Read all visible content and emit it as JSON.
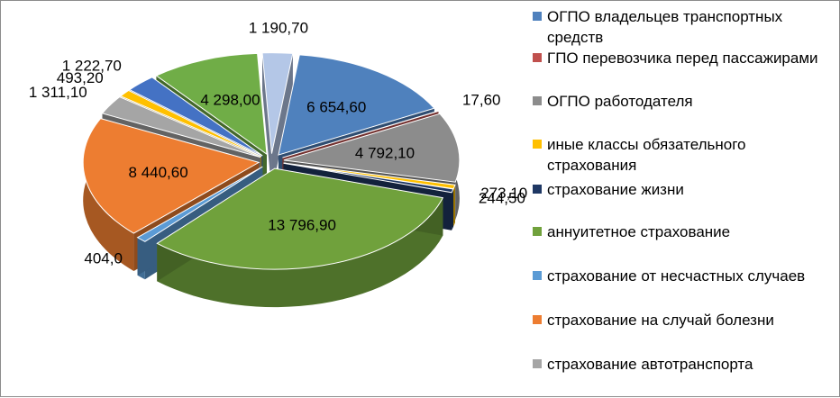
{
  "chart_data": {
    "type": "pie",
    "style": "3d-exploded",
    "legend_position": "right",
    "slices": [
      {
        "label": "ОГПО владельцев транспортных средств",
        "value": 6654.6,
        "value_label": "6 654,60",
        "color": "#4f81bd"
      },
      {
        "label": "ГПО перевозчика перед пассажирами",
        "value": 17.6,
        "value_label": "17,60",
        "color": "#c0504d"
      },
      {
        "label": "ОГПО работодателя",
        "value": 4792.1,
        "value_label": "4 792,10",
        "color": "#8c8c8c"
      },
      {
        "label": "иные классы обязательного страхования",
        "value": 273.1,
        "value_label": "273,10",
        "color": "#ffc000"
      },
      {
        "label": "страхование жизни",
        "value": 244.5,
        "value_label": "244,50",
        "color": "#1f3864"
      },
      {
        "label": "аннуитетное страхование",
        "value": 13796.9,
        "value_label": "13 796,90",
        "color": "#70a13c"
      },
      {
        "label": "страхование от несчастных случаев",
        "value": 404.0,
        "value_label": "404,0",
        "color": "#5b9bd5"
      },
      {
        "label": "страхование на случай болезни",
        "value": 8440.6,
        "value_label": "8 440,60",
        "color": "#ed7d31"
      },
      {
        "label": "страхование автотранспорта",
        "value": 1311.1,
        "value_label": "1 311,10",
        "color": "#a5a5a5"
      },
      {
        "label": "",
        "value": 493.2,
        "value_label": "493,20",
        "color": "#ffc000"
      },
      {
        "label": "",
        "value": 1222.7,
        "value_label": "1 222,70",
        "color": "#4472c4"
      },
      {
        "label": "",
        "value": 4298.0,
        "value_label": "4 298,00",
        "color": "#70ad47"
      },
      {
        "label": "",
        "value": 1190.7,
        "value_label": "1 190,70",
        "color": "#b4c7e7"
      }
    ]
  }
}
